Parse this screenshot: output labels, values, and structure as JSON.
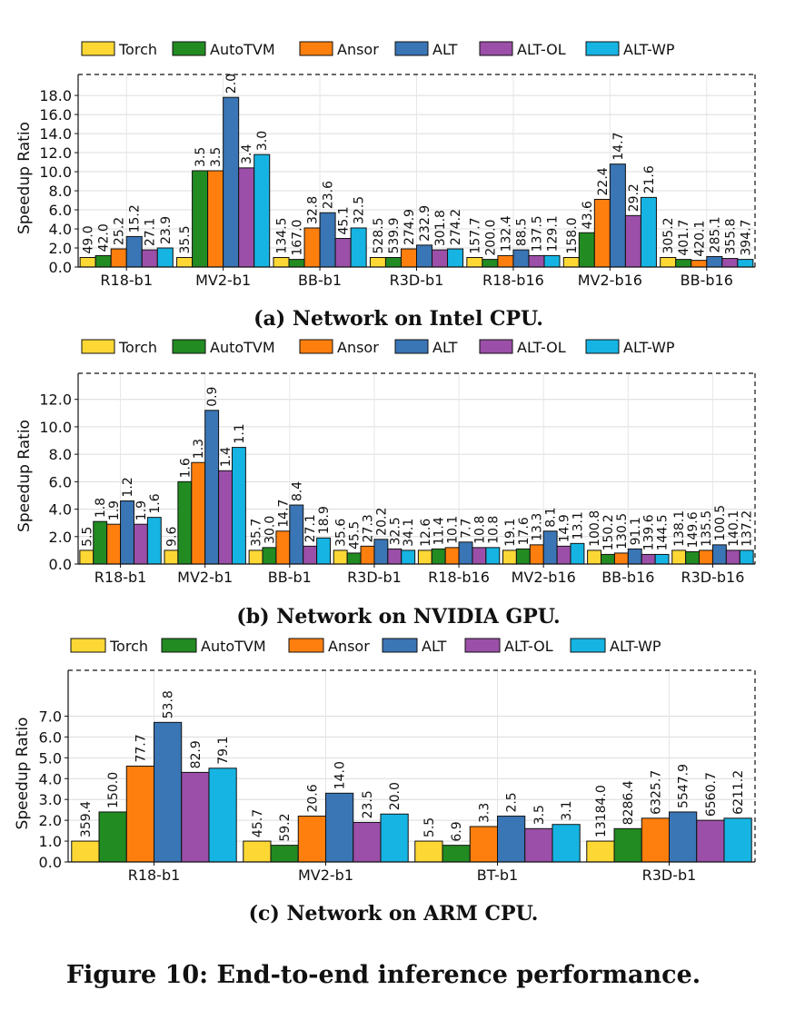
{
  "colors": {
    "Torch": "#fdd835",
    "AutoTVM": "#228b22",
    "Ansor": "#ff7f0e",
    "ALT": "#3a75b5",
    "ALT-OL": "#9b4fa8",
    "ALT-WP": "#16b4e3"
  },
  "figure_caption": "Figure 10: End-to-end inference performance.",
  "chart_data": [
    {
      "type": "bar",
      "caption": "(a) Network on Intel CPU.",
      "ylabel": "Speedup Ratio",
      "ylim": [
        0,
        20.2
      ],
      "yticks": [
        "0.0",
        "2.0",
        "4.0",
        "6.0",
        "8.0",
        "10.0",
        "12.0",
        "14.0",
        "16.0",
        "18.0"
      ],
      "grid": true,
      "legend_position": "top",
      "categories": [
        "R18-b1",
        "MV2-b1",
        "BB-b1",
        "R3D-b1",
        "R18-b16",
        "MV2-b16",
        "BB-b16"
      ],
      "series": [
        {
          "name": "Torch",
          "values": [
            1.0,
            1.0,
            1.0,
            1.0,
            1.0,
            1.0,
            1.0
          ],
          "labels": [
            "49.0",
            "35.5",
            "134.5",
            "528.5",
            "157.7",
            "158.0",
            "305.2"
          ]
        },
        {
          "name": "AutoTVM",
          "values": [
            1.2,
            10.1,
            0.8,
            1.0,
            0.8,
            3.6,
            0.8
          ],
          "labels": [
            "42.0",
            "3.5",
            "167.0",
            "539.9",
            "200.0",
            "43.6",
            "401.7"
          ]
        },
        {
          "name": "Ansor",
          "values": [
            1.9,
            10.1,
            4.1,
            1.9,
            1.2,
            7.1,
            0.7
          ],
          "labels": [
            "25.2",
            "3.5",
            "32.8",
            "274.9",
            "132.4",
            "22.4",
            "420.1"
          ]
        },
        {
          "name": "ALT",
          "values": [
            3.2,
            17.8,
            5.7,
            2.3,
            1.8,
            10.8,
            1.1
          ],
          "labels": [
            "15.2",
            "2.0",
            "23.6",
            "232.9",
            "88.5",
            "14.7",
            "285.1"
          ]
        },
        {
          "name": "ALT-OL",
          "values": [
            1.8,
            10.4,
            3.0,
            1.8,
            1.2,
            5.4,
            0.9
          ],
          "labels": [
            "27.1",
            "3.4",
            "45.1",
            "301.8",
            "137.5",
            "29.2",
            "355.8"
          ]
        },
        {
          "name": "ALT-WP",
          "values": [
            2.0,
            11.8,
            4.1,
            1.9,
            1.2,
            7.3,
            0.8
          ],
          "labels": [
            "23.9",
            "3.0",
            "32.5",
            "274.2",
            "129.1",
            "21.6",
            "394.7"
          ]
        }
      ]
    },
    {
      "type": "bar",
      "caption": "(b) Network on NVIDIA GPU.",
      "ylabel": "Speedup Ratio",
      "ylim": [
        0,
        13.9
      ],
      "yticks": [
        "0.0",
        "2.0",
        "4.0",
        "6.0",
        "8.0",
        "10.0",
        "12.0"
      ],
      "grid": true,
      "legend_position": "top",
      "categories": [
        "R18-b1",
        "MV2-b1",
        "BB-b1",
        "R3D-b1",
        "R18-b16",
        "MV2-b16",
        "BB-b16",
        "R3D-b16"
      ],
      "series": [
        {
          "name": "Torch",
          "values": [
            1.0,
            1.0,
            1.0,
            1.0,
            1.0,
            1.0,
            1.0,
            1.0
          ],
          "labels": [
            "5.5",
            "9.6",
            "35.7",
            "35.6",
            "12.6",
            "19.1",
            "100.8",
            "138.1"
          ]
        },
        {
          "name": "AutoTVM",
          "values": [
            3.1,
            6.0,
            1.2,
            0.8,
            1.1,
            1.1,
            0.7,
            0.9
          ],
          "labels": [
            "1.8",
            "1.6",
            "30.0",
            "45.5",
            "11.4",
            "17.6",
            "150.2",
            "149.6"
          ]
        },
        {
          "name": "Ansor",
          "values": [
            2.9,
            7.4,
            2.4,
            1.3,
            1.2,
            1.4,
            0.8,
            1.0
          ],
          "labels": [
            "1.9",
            "1.3",
            "14.7",
            "27.3",
            "10.1",
            "13.3",
            "130.5",
            "135.5"
          ]
        },
        {
          "name": "ALT",
          "values": [
            4.6,
            11.2,
            4.3,
            1.8,
            1.6,
            2.4,
            1.1,
            1.4
          ],
          "labels": [
            "1.2",
            "0.9",
            "8.4",
            "20.2",
            "7.7",
            "8.1",
            "91.1",
            "100.5"
          ]
        },
        {
          "name": "ALT-OL",
          "values": [
            2.9,
            6.8,
            1.3,
            1.1,
            1.2,
            1.3,
            0.7,
            1.0
          ],
          "labels": [
            "1.9",
            "1.4",
            "27.1",
            "32.5",
            "10.8",
            "14.9",
            "139.6",
            "140.1"
          ]
        },
        {
          "name": "ALT-WP",
          "values": [
            3.4,
            8.5,
            1.9,
            1.0,
            1.2,
            1.5,
            0.7,
            1.0
          ],
          "labels": [
            "1.6",
            "1.1",
            "18.9",
            "34.1",
            "10.8",
            "13.1",
            "144.5",
            "137.2"
          ]
        }
      ]
    },
    {
      "type": "bar",
      "caption": "(c) Network on ARM CPU.",
      "ylabel": "Speedup Ratio",
      "ylim": [
        0,
        9.2
      ],
      "yticks": [
        "0.0",
        "1.0",
        "2.0",
        "3.0",
        "4.0",
        "5.0",
        "6.0",
        "7.0"
      ],
      "grid": true,
      "legend_position": "top",
      "categories": [
        "R18-b1",
        "MV2-b1",
        "BT-b1",
        "R3D-b1"
      ],
      "series": [
        {
          "name": "Torch",
          "values": [
            1.0,
            1.0,
            1.0,
            1.0
          ],
          "labels": [
            "359.4",
            "45.7",
            "5.5",
            "13184.0"
          ]
        },
        {
          "name": "AutoTVM",
          "values": [
            2.4,
            0.8,
            0.8,
            1.6
          ],
          "labels": [
            "150.0",
            "59.2",
            "6.9",
            "8286.4"
          ]
        },
        {
          "name": "Ansor",
          "values": [
            4.6,
            2.2,
            1.7,
            2.1
          ],
          "labels": [
            "77.7",
            "20.6",
            "3.3",
            "6325.7"
          ]
        },
        {
          "name": "ALT",
          "values": [
            6.7,
            3.3,
            2.2,
            2.4
          ],
          "labels": [
            "53.8",
            "14.0",
            "2.5",
            "5547.9"
          ]
        },
        {
          "name": "ALT-OL",
          "values": [
            4.3,
            1.9,
            1.6,
            2.0
          ],
          "labels": [
            "82.9",
            "23.5",
            "3.5",
            "6560.7"
          ]
        },
        {
          "name": "ALT-WP",
          "values": [
            4.5,
            2.3,
            1.8,
            2.1
          ],
          "labels": [
            "79.1",
            "20.0",
            "3.1",
            "6211.2"
          ]
        }
      ]
    }
  ]
}
